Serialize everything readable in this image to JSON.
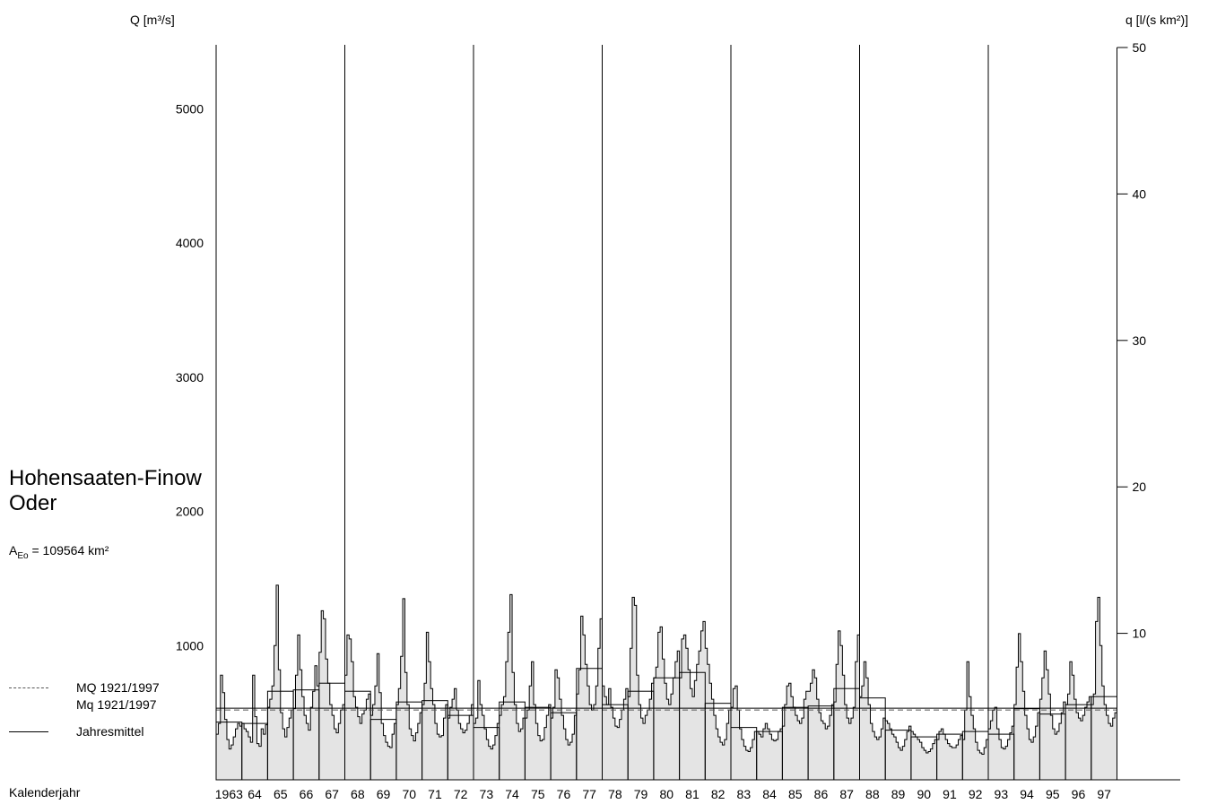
{
  "left_axis_label": "Q [m³/s]",
  "right_axis_label": "q [l/(s km²)]",
  "station": {
    "name": "Hohensaaten-Finow",
    "river": "Oder"
  },
  "area": {
    "prefix": "A",
    "sub": "Eo",
    "value": " = 109564 km²"
  },
  "legend": {
    "mq": "MQ 1921/1997",
    "mq_small": "Mq 1921/1997",
    "annual": "Jahresmittel"
  },
  "x_axis_label": "Kalenderjahr",
  "chart_data": {
    "type": "area",
    "left_axis": {
      "ticks": [
        1000,
        2000,
        3000,
        4000,
        5000
      ],
      "range": [
        0,
        5500
      ]
    },
    "right_axis": {
      "ticks": [
        10,
        20,
        30,
        40,
        50
      ],
      "range": [
        0,
        50
      ]
    },
    "year_labels": [
      "1963",
      "64",
      "65",
      "66",
      "67",
      "68",
      "69",
      "70",
      "71",
      "72",
      "73",
      "74",
      "75",
      "76",
      "77",
      "78",
      "79",
      "80",
      "81",
      "82",
      "83",
      "84",
      "85",
      "86",
      "87",
      "88",
      "89",
      "90",
      "91",
      "92",
      "93",
      "94",
      "95",
      "96",
      "97"
    ],
    "decade_lines_after_year": [
      "67",
      "72",
      "77",
      "82",
      "87",
      "92"
    ],
    "mq_long_term": 520,
    "annual_means": [
      430,
      420,
      660,
      670,
      720,
      660,
      450,
      580,
      590,
      480,
      390,
      580,
      540,
      500,
      830,
      560,
      660,
      760,
      800,
      570,
      390,
      360,
      540,
      550,
      680,
      610,
      370,
      320,
      340,
      360,
      340,
      530,
      490,
      560,
      620
    ],
    "monthly_means": [
      [
        340,
        420,
        780,
        650,
        450,
        300,
        230,
        260,
        320,
        380,
        420,
        400
      ],
      [
        420,
        380,
        360,
        320,
        280,
        780,
        470,
        270,
        250,
        380,
        340,
        410
      ],
      [
        540,
        600,
        700,
        1000,
        1450,
        820,
        500,
        380,
        320,
        390,
        460,
        520
      ],
      [
        530,
        780,
        1080,
        820,
        620,
        480,
        420,
        370,
        540,
        660,
        850,
        700
      ],
      [
        950,
        1260,
        1200,
        900,
        720,
        560,
        480,
        380,
        350,
        420,
        520,
        560
      ],
      [
        780,
        1080,
        1050,
        880,
        620,
        540,
        470,
        420,
        490,
        520,
        600,
        640
      ],
      [
        480,
        560,
        700,
        940,
        650,
        420,
        330,
        280,
        250,
        240,
        340,
        420
      ],
      [
        560,
        680,
        920,
        1350,
        800,
        560,
        380,
        330,
        290,
        350,
        420,
        500
      ],
      [
        560,
        720,
        1100,
        880,
        680,
        560,
        420,
        340,
        320,
        330,
        460,
        560
      ],
      [
        460,
        540,
        600,
        680,
        520,
        420,
        380,
        350,
        370,
        420,
        480,
        560
      ],
      [
        420,
        460,
        740,
        560,
        480,
        380,
        300,
        250,
        230,
        260,
        330,
        420
      ],
      [
        480,
        560,
        620,
        880,
        1100,
        1380,
        800,
        560,
        420,
        360,
        380,
        460
      ],
      [
        460,
        520,
        700,
        880,
        560,
        420,
        330,
        290,
        300,
        390,
        480,
        560
      ],
      [
        460,
        540,
        820,
        760,
        600,
        480,
        380,
        300,
        260,
        280,
        340,
        480
      ],
      [
        640,
        820,
        1220,
        1080,
        860,
        700,
        560,
        520,
        560,
        700,
        980,
        1200
      ],
      [
        700,
        620,
        560,
        680,
        540,
        460,
        400,
        390,
        450,
        520,
        600,
        680
      ],
      [
        620,
        980,
        1360,
        1300,
        780,
        560,
        460,
        420,
        480,
        520,
        600,
        720
      ],
      [
        760,
        840,
        1100,
        1140,
        900,
        720,
        600,
        560,
        640,
        760,
        880,
        960
      ],
      [
        760,
        1050,
        1080,
        980,
        820,
        680,
        620,
        740,
        860,
        960,
        1110,
        1180
      ],
      [
        980,
        860,
        720,
        600,
        480,
        380,
        320,
        280,
        260,
        300,
        420,
        520
      ],
      [
        540,
        680,
        700,
        520,
        380,
        300,
        250,
        220,
        210,
        240,
        300,
        360
      ],
      [
        360,
        340,
        320,
        380,
        420,
        380,
        340,
        300,
        290,
        300,
        360,
        380
      ],
      [
        400,
        560,
        700,
        720,
        620,
        540,
        480,
        440,
        420,
        460,
        600,
        660
      ],
      [
        660,
        720,
        820,
        760,
        600,
        500,
        440,
        420,
        380,
        400,
        480,
        560
      ],
      [
        580,
        860,
        1110,
        1000,
        780,
        560,
        460,
        420,
        460,
        540,
        880,
        1080
      ],
      [
        620,
        700,
        880,
        760,
        560,
        420,
        360,
        320,
        300,
        320,
        380,
        460
      ],
      [
        440,
        420,
        380,
        340,
        320,
        280,
        240,
        220,
        250,
        300,
        360,
        400
      ],
      [
        360,
        340,
        320,
        300,
        280,
        240,
        220,
        200,
        210,
        230,
        270,
        300
      ],
      [
        300,
        360,
        380,
        340,
        300,
        270,
        250,
        240,
        240,
        260,
        300,
        330
      ],
      [
        300,
        520,
        880,
        620,
        480,
        380,
        280,
        220,
        200,
        190,
        240,
        300
      ],
      [
        380,
        440,
        520,
        540,
        380,
        300,
        240,
        230,
        250,
        300,
        350,
        400
      ],
      [
        560,
        840,
        1090,
        880,
        660,
        480,
        380,
        300,
        280,
        320,
        400,
        500
      ],
      [
        600,
        760,
        960,
        820,
        640,
        480,
        380,
        340,
        360,
        420,
        500,
        580
      ],
      [
        560,
        640,
        880,
        780,
        600,
        500,
        460,
        440,
        480,
        540,
        580,
        620
      ],
      [
        560,
        640,
        1180,
        1360,
        1000,
        700,
        560,
        480,
        420,
        400,
        460,
        500
      ]
    ]
  }
}
